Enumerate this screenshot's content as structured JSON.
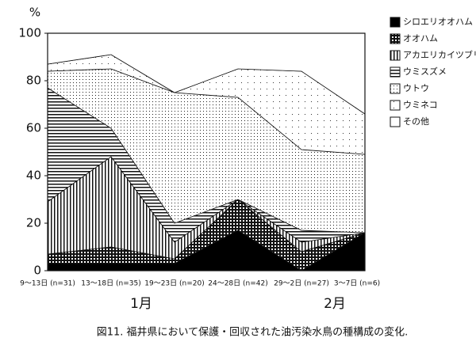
{
  "chart_data": {
    "type": "stacked_area",
    "caption": "図11. 福井県において保護・回収された油汚染水鳥の種構成の変化.",
    "y_label": "%",
    "categories": [
      "9～13日 (n=31)",
      "13～18日 (n=35)",
      "19～23日 (n=20)",
      "24～28日 (n=42)",
      "29～2日 (n=27)",
      "3～7日 (n=6)"
    ],
    "annotations": [
      "1月",
      "2月"
    ],
    "series": [
      {
        "name": "シロエリオオハム",
        "color": "#000000",
        "values": [
          3,
          3,
          3,
          17,
          0,
          16
        ]
      },
      {
        "name": "オオハム",
        "color": "#111111",
        "values": [
          4,
          7,
          2,
          13,
          8,
          0
        ]
      },
      {
        "name": "アカエリカイツブリ",
        "color": "#111111",
        "values": [
          22,
          38,
          7,
          0,
          4,
          0
        ]
      },
      {
        "name": "ウミスズメ",
        "color": "#111111",
        "values": [
          48,
          12,
          8,
          0,
          5,
          0
        ]
      },
      {
        "name": "ウトウ",
        "color": "#222222",
        "values": [
          7,
          25,
          55,
          43,
          34,
          33
        ]
      },
      {
        "name": "ウミネコ",
        "color": "#333333",
        "values": [
          3,
          6,
          0,
          12,
          33,
          17
        ]
      },
      {
        "name": "その他",
        "color": "#ffffff",
        "values": [
          13,
          9,
          25,
          15,
          16,
          34
        ]
      }
    ],
    "ylim": [
      0,
      100
    ],
    "yticks": [
      0,
      20,
      40,
      60,
      80,
      100
    ]
  }
}
